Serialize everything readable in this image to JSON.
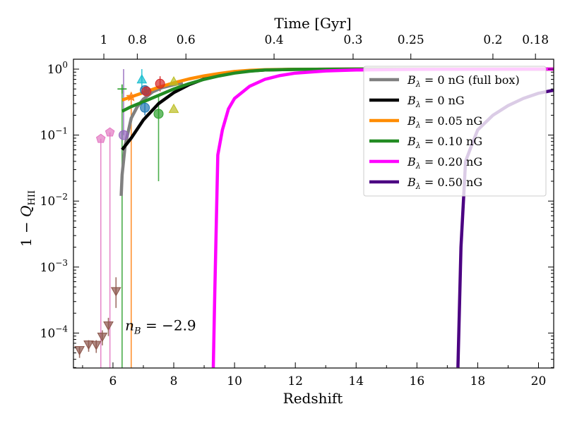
{
  "chart_data": {
    "type": "line",
    "xlabel": "Redshift",
    "ylabel": "1 − Q_HII",
    "top_xlabel": "Time [Gyr]",
    "xlim": [
      4.7,
      20.5
    ],
    "ylim_log10": [
      -4.53,
      0.15
    ],
    "yscale": "log",
    "x_ticks": [
      6,
      8,
      10,
      12,
      14,
      16,
      18,
      20
    ],
    "y_ticks": [
      {
        "exp": 0,
        "label": "10^0"
      },
      {
        "exp": -1,
        "label": "10^-1"
      },
      {
        "exp": -2,
        "label": "10^-2"
      },
      {
        "exp": -3,
        "label": "10^-3"
      },
      {
        "exp": -4,
        "label": "10^-4"
      }
    ],
    "top_ticks": [
      {
        "label": "1",
        "z": 5.7
      },
      {
        "label": "0.8",
        "z": 6.8
      },
      {
        "label": "0.6",
        "z": 8.4
      },
      {
        "label": "0.4",
        "z": 11.3
      },
      {
        "label": "0.3",
        "z": 13.9
      },
      {
        "label": "0.25",
        "z": 15.8
      },
      {
        "label": "0.2",
        "z": 18.5
      },
      {
        "label": "0.18",
        "z": 19.9
      }
    ],
    "annotation": {
      "text": "n_B = −2.9",
      "x": 6.4,
      "y": 0.00011
    },
    "legend_position": "upper-right",
    "series": [
      {
        "name": "B_λ = 0 nG (full box)",
        "label_main": "B",
        "label_sub": "λ",
        "label_rest": " = 0 nG (full box)",
        "color": "#808080",
        "x": [
          6.27,
          6.3,
          6.4,
          6.6,
          6.8,
          7.0,
          7.3,
          7.6,
          8.0,
          8.3
        ],
        "y": [
          0.012,
          0.025,
          0.07,
          0.18,
          0.27,
          0.35,
          0.45,
          0.52,
          0.58,
          0.62
        ]
      },
      {
        "name": "B_λ = 0 nG",
        "label_main": "B",
        "label_sub": "λ",
        "label_rest": " = 0 nG",
        "color": "#000000",
        "x": [
          6.3,
          6.6,
          7.0,
          7.5,
          8.0,
          8.5,
          9.0,
          9.5,
          10.0,
          10.5,
          11.0,
          12.0,
          14.0,
          20.5
        ],
        "y": [
          0.06,
          0.09,
          0.17,
          0.3,
          0.44,
          0.58,
          0.71,
          0.81,
          0.89,
          0.94,
          0.97,
          0.99,
          1.0,
          1.0
        ]
      },
      {
        "name": "B_λ = 0.05 nG",
        "label_main": "B",
        "label_sub": "λ",
        "label_rest": " = 0.05 nG",
        "color": "#ff8c00",
        "x": [
          6.3,
          6.6,
          7.0,
          7.5,
          8.0,
          8.5,
          9.0,
          9.5,
          10.0,
          10.5,
          11.0,
          12.0,
          14.0,
          20.5
        ],
        "y": [
          0.34,
          0.38,
          0.44,
          0.53,
          0.62,
          0.71,
          0.79,
          0.86,
          0.92,
          0.96,
          0.98,
          0.995,
          1.0,
          1.0
        ]
      },
      {
        "name": "B_λ = 0.10 nG",
        "label_main": "B",
        "label_sub": "λ",
        "label_rest": " = 0.10 nG",
        "color": "#228b22",
        "x": [
          6.3,
          6.6,
          7.0,
          7.5,
          8.0,
          8.5,
          9.0,
          9.5,
          10.0,
          10.5,
          11.0,
          12.0,
          14.0,
          20.5
        ],
        "y": [
          0.23,
          0.27,
          0.32,
          0.4,
          0.5,
          0.6,
          0.7,
          0.79,
          0.87,
          0.93,
          0.97,
          0.99,
          1.0,
          1.0
        ]
      },
      {
        "name": "B_λ = 0.20 nG",
        "label_main": "B",
        "label_sub": "λ",
        "label_rest": " = 0.20 nG",
        "color": "#ff00ff",
        "x": [
          9.3,
          9.35,
          9.45,
          9.6,
          9.8,
          10.0,
          10.5,
          11.0,
          11.5,
          12.0,
          13.0,
          14.0,
          16.0,
          20.5
        ],
        "y": [
          3e-05,
          0.0004,
          0.05,
          0.12,
          0.25,
          0.36,
          0.55,
          0.7,
          0.8,
          0.87,
          0.94,
          0.97,
          0.99,
          1.0
        ]
      },
      {
        "name": "B_λ = 0.50 nG",
        "label_main": "B",
        "label_sub": "λ",
        "label_rest": " = 0.50 nG",
        "color": "#4b0082",
        "x": [
          17.35,
          17.45,
          17.6,
          17.8,
          18.0,
          18.5,
          19.0,
          19.5,
          20.0,
          20.5
        ],
        "y": [
          3e-05,
          0.002,
          0.04,
          0.07,
          0.12,
          0.2,
          0.28,
          0.36,
          0.43,
          0.48
        ]
      }
    ],
    "observations": [
      {
        "marker": "triangle-down",
        "color": "#8c564b",
        "x": 4.9,
        "y": 5.5e-05,
        "ylo": 4.2e-05,
        "yhi": 6.3e-05
      },
      {
        "marker": "triangle-down",
        "color": "#8c564b",
        "x": 5.2,
        "y": 6.7e-05,
        "ylo": 5.2e-05,
        "yhi": 7.8e-05
      },
      {
        "marker": "triangle-down",
        "color": "#8c564b",
        "x": 5.45,
        "y": 6.6e-05,
        "ylo": 5e-05,
        "yhi": 7.8e-05
      },
      {
        "marker": "triangle-down",
        "color": "#8c564b",
        "x": 5.65,
        "y": 8.8e-05,
        "ylo": 6.5e-05,
        "yhi": 0.00011
      },
      {
        "marker": "triangle-down",
        "color": "#8c564b",
        "x": 5.85,
        "y": 0.00013,
        "ylo": 9e-05,
        "yhi": 0.00017
      },
      {
        "marker": "triangle-down",
        "color": "#8c564b",
        "x": 6.1,
        "y": 0.00043,
        "ylo": 0.00024,
        "yhi": 0.0007
      },
      {
        "marker": "pentagon",
        "color": "#e377c2",
        "x": 5.6,
        "y": 0.088,
        "ylo": 3e-05,
        "yhi": 0.088
      },
      {
        "marker": "pentagon",
        "color": "#e377c2",
        "x": 5.9,
        "y": 0.11,
        "ylo": 3e-05,
        "yhi": 0.11
      },
      {
        "marker": "circle",
        "color": "#9467bd",
        "x": 6.35,
        "y": 0.1,
        "ylo": 0.1,
        "yhi": 1.0
      },
      {
        "marker": "plus",
        "color": "#2ca02c",
        "x": 6.3,
        "y": 0.5,
        "ylo": 3e-05,
        "yhi": 0.5
      },
      {
        "marker": "star",
        "color": "#ff7f0e",
        "x": 6.6,
        "y": 0.38,
        "ylo": 3e-05,
        "yhi": 0.38
      },
      {
        "marker": "triangle-up",
        "color": "#17becf",
        "x": 6.95,
        "y": 0.7,
        "ylo": 0.5,
        "yhi": 1.0
      },
      {
        "marker": "circle",
        "color": "#1f77b4",
        "x": 7.05,
        "y": 0.26,
        "ylo": 0.2,
        "yhi": 0.32
      },
      {
        "marker": "circle",
        "color": "#1f77b4",
        "x": 7.05,
        "y": 0.48,
        "ylo": 0.4,
        "yhi": 0.55
      },
      {
        "marker": "circle",
        "color": "#d62728",
        "x": 7.1,
        "y": 0.46,
        "ylo": 0.36,
        "yhi": 0.56
      },
      {
        "marker": "circle",
        "color": "#d62728",
        "x": 7.55,
        "y": 0.6,
        "ylo": 0.46,
        "yhi": 0.78
      },
      {
        "marker": "circle",
        "color": "#2ca02c",
        "x": 7.5,
        "y": 0.21,
        "ylo": 0.02,
        "yhi": 0.4
      },
      {
        "marker": "triangle-up",
        "color": "#bcbd22",
        "x": 8.0,
        "y": 0.25,
        "ylo": 0.25,
        "yhi": 0.25
      },
      {
        "marker": "triangle-up",
        "color": "#bcbd22",
        "x": 8.0,
        "y": 0.65,
        "ylo": 0.65,
        "yhi": 0.65
      }
    ]
  }
}
